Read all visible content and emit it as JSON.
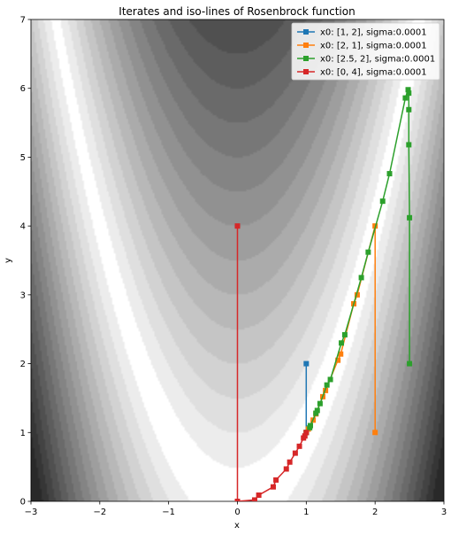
{
  "chart_data": {
    "type": "line",
    "title": "Iterates and iso-lines of Rosenbrock function",
    "xlabel": "x",
    "ylabel": "y",
    "xlim": [
      -3,
      3
    ],
    "ylim": [
      0,
      7
    ],
    "xticks": [
      "−3",
      "−2",
      "−1",
      "0",
      "1",
      "2",
      "3"
    ],
    "yticks": [
      "0",
      "1",
      "2",
      "3",
      "4",
      "5",
      "6",
      "7"
    ],
    "grid": false,
    "legend_position": "top-right",
    "background": "filled contours of the Rosenbrock function (grayscale)",
    "series": [
      {
        "name": "x0: [1, 2], sigma:0.0001",
        "color": "#1f77b4",
        "marker": "square",
        "points": [
          [
            1.0,
            2.0
          ],
          [
            1.0,
            1.0
          ]
        ]
      },
      {
        "name": "x0: [2, 1], sigma:0.0001",
        "color": "#ff7f0e",
        "marker": "square",
        "points": [
          [
            2.0,
            1.0
          ],
          [
            2.0,
            4.0
          ],
          [
            1.74,
            3.0
          ],
          [
            1.69,
            2.87
          ],
          [
            1.5,
            2.14
          ],
          [
            1.46,
            2.05
          ],
          [
            1.28,
            1.61
          ],
          [
            1.24,
            1.52
          ],
          [
            1.14,
            1.27
          ],
          [
            1.1,
            1.18
          ],
          [
            1.06,
            1.1
          ],
          [
            1.03,
            1.05
          ],
          [
            1.0,
            1.0
          ]
        ]
      },
      {
        "name": "x0: [2.5, 2], sigma:0.0001",
        "color": "#2ca02c",
        "marker": "square",
        "points": [
          [
            2.5,
            2.0
          ],
          [
            2.5,
            4.12
          ],
          [
            2.49,
            5.18
          ],
          [
            2.49,
            5.69
          ],
          [
            2.49,
            5.93
          ],
          [
            2.48,
            5.98
          ],
          [
            2.44,
            5.86
          ],
          [
            2.21,
            4.76
          ],
          [
            2.11,
            4.36
          ],
          [
            1.9,
            3.62
          ],
          [
            1.8,
            3.25
          ],
          [
            1.56,
            2.42
          ],
          [
            1.51,
            2.3
          ],
          [
            1.35,
            1.77
          ],
          [
            1.3,
            1.69
          ],
          [
            1.2,
            1.42
          ],
          [
            1.16,
            1.32
          ],
          [
            1.14,
            1.28
          ],
          [
            1.06,
            1.1
          ],
          [
            1.05,
            1.07
          ],
          [
            1.0,
            1.0
          ]
        ]
      },
      {
        "name": "x0: [0, 4], sigma:0.0001",
        "color": "#d62728",
        "marker": "square",
        "points": [
          [
            0.0,
            4.0
          ],
          [
            0.0,
            0.0
          ],
          [
            0.25,
            0.02
          ],
          [
            0.31,
            0.09
          ],
          [
            0.52,
            0.21
          ],
          [
            0.56,
            0.31
          ],
          [
            0.71,
            0.47
          ],
          [
            0.76,
            0.57
          ],
          [
            0.84,
            0.7
          ],
          [
            0.9,
            0.8
          ],
          [
            0.96,
            0.92
          ],
          [
            0.98,
            0.95
          ],
          [
            1.0,
            1.0
          ]
        ]
      }
    ]
  }
}
